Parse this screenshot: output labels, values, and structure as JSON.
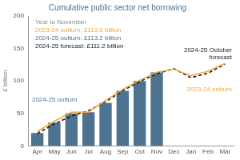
{
  "chart_data": {
    "type": "bar",
    "title": "Cumulative public sector net borrowing",
    "y_label": "£ billion",
    "categories": [
      "Apr",
      "May",
      "Jun",
      "Jul",
      "Aug",
      "Sep",
      "Oct",
      "Nov",
      "Dec",
      "Jan",
      "Feb",
      "Mar"
    ],
    "series": [
      {
        "name": "2024-25 outturn",
        "type": "bar",
        "color": "#4d7391",
        "values": [
          20,
          36,
          50,
          52,
          66,
          85,
          100,
          113.2,
          null,
          null,
          null,
          null
        ]
      },
      {
        "name": "2023-24 outturn",
        "type": "line",
        "color": "#f2a93b",
        "line_style": "solid",
        "values": [
          22,
          38,
          52,
          52,
          70,
          87,
          101,
          113.6,
          118,
          108,
          115,
          127
        ]
      },
      {
        "name": "2024-25 October forecast",
        "type": "line",
        "color": "#1a1a1a",
        "line_style": "dashed",
        "values": [
          19,
          34,
          46,
          54,
          68,
          85,
          99,
          111.2,
          119,
          105,
          112,
          126
        ]
      }
    ],
    "annotations": [
      {
        "text": "Year to November",
        "color": "#8c8c8c"
      },
      {
        "text": "2023-24 outturn: £113.6 billion",
        "color": "#f2a93b"
      },
      {
        "text": "2024-25 outturn: £113.2 billion",
        "color": "#4d7391"
      },
      {
        "text": "2024-25 forecast: £111.2 billion",
        "color": "#1a1a1a"
      }
    ],
    "ylim": [
      0,
      200
    ],
    "yticks": [
      0,
      50,
      100,
      150,
      200
    ],
    "grid": false
  }
}
